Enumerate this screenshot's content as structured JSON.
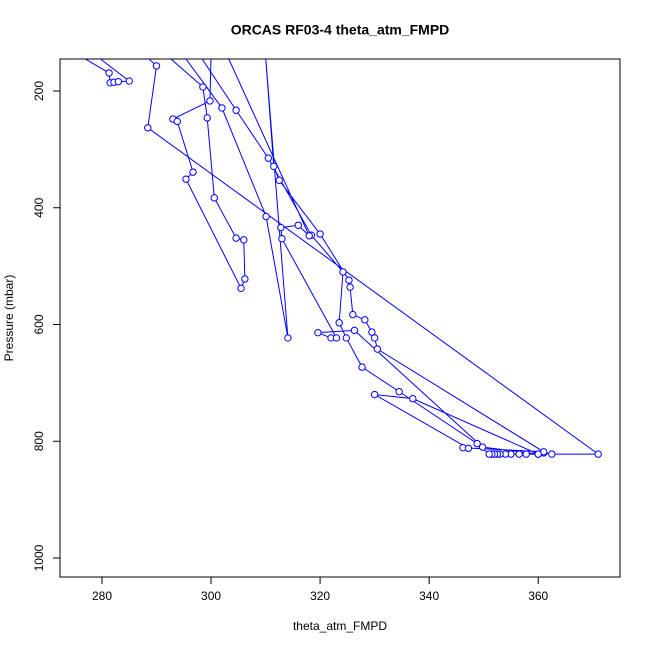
{
  "chart_data": {
    "type": "line",
    "title": "ORCAS RF03-4 theta_atm_FMPD",
    "xlabel": "theta_atm_FMPD",
    "ylabel": "Pressure (mbar)",
    "xlim": [
      272.3,
      375
    ],
    "ylim": [
      1032.5,
      145.2
    ],
    "xticks": [
      280,
      300,
      320,
      340,
      360
    ],
    "yticks": [
      200,
      400,
      600,
      800,
      1000
    ],
    "x": [
      276,
      281.3,
      281.5,
      282.2,
      283,
      285,
      279,
      288,
      290,
      288.4,
      371,
      362.5,
      361,
      360,
      357.8,
      356.5,
      355,
      354,
      353,
      352.5,
      352,
      351.5,
      351,
      348.8,
      334.5,
      327.7,
      324.8,
      323.5,
      324.2,
      318.4,
      310.5,
      304.6,
      298,
      300,
      299.8,
      293,
      293.8,
      296.7,
      295.4,
      305.5,
      306.2,
      306,
      304.6,
      300.6,
      299.3,
      298.5,
      292,
      295,
      302,
      310.1,
      314.1,
      310,
      311.5,
      312.5,
      320,
      325.3,
      325.5,
      326,
      328.2,
      329.5,
      330,
      330.5,
      361,
      346.2,
      347.2,
      330,
      337,
      360,
      349.8,
      326.3,
      319.6,
      322,
      323,
      313,
      312.8,
      316,
      318,
      303
    ],
    "series": [
      {
        "name": "theta_atm_FMPD",
        "color": "#0000ff",
        "values": [
          140,
          169,
          186,
          185,
          184,
          183,
          140,
          140,
          157,
          263,
          822,
          822,
          820,
          822,
          822,
          822,
          822,
          822,
          822,
          822,
          822,
          822,
          822,
          804,
          715,
          673,
          623,
          597,
          510,
          447,
          315,
          233,
          140,
          140,
          217,
          248,
          252,
          339,
          351,
          538,
          522,
          455,
          452,
          383,
          246,
          193,
          140,
          140,
          229,
          415,
          623,
          140,
          329,
          353,
          445,
          524,
          536,
          583,
          592,
          613,
          623,
          642,
          818,
          811,
          812,
          720,
          727,
          822,
          810,
          610,
          614,
          623,
          623,
          453,
          434,
          430,
          448,
          140
        ]
      }
    ]
  }
}
